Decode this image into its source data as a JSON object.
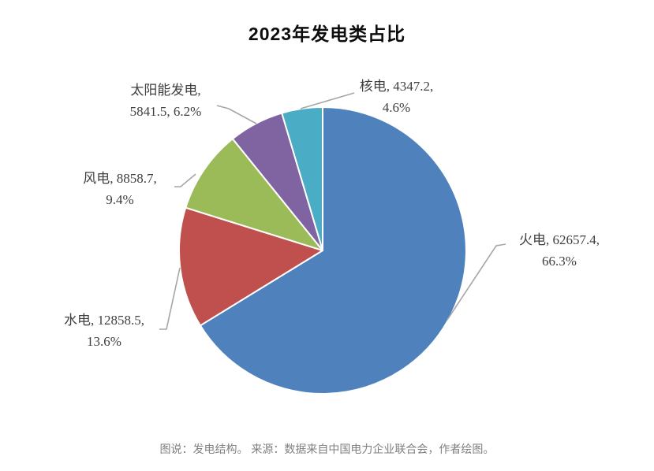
{
  "title": "2023年发电类占比",
  "caption": "图说：发电结构。 来源：数据来自中国电力企业联合会，作者绘图。",
  "chart_data": {
    "type": "pie",
    "title": "2023年发电类占比",
    "unit_note": "value, percent",
    "start_angle_deg": 0,
    "direction": "clockwise",
    "legend": "none",
    "label_style": "outside labels with gray leader lines: category, value, percent",
    "slices": [
      {
        "key": "thermal",
        "name": "火电",
        "value": 62657.4,
        "pct": 66.3,
        "color": "#4F81BD",
        "label_lines": [
          "火电, 62657.4,",
          "66.3%"
        ]
      },
      {
        "key": "hydro",
        "name": "水电",
        "value": 12858.5,
        "pct": 13.6,
        "color": "#C0504D",
        "label_lines": [
          "水电, 12858.5,",
          "13.6%"
        ]
      },
      {
        "key": "wind",
        "name": "风电",
        "value": 8858.7,
        "pct": 9.4,
        "color": "#9BBB59",
        "label_lines": [
          "风电, 8858.7,",
          "9.4%"
        ]
      },
      {
        "key": "solar",
        "name": "太阳能发电",
        "value": 5841.5,
        "pct": 6.2,
        "color": "#8064A2",
        "label_lines": [
          "太阳能发电,",
          "5841.5, 6.2%"
        ]
      },
      {
        "key": "nuclear",
        "name": "核电",
        "value": 4347.2,
        "pct": 4.6,
        "color": "#4BACC6",
        "label_lines": [
          "核电, 4347.2,",
          "4.6%"
        ]
      }
    ],
    "colors": {
      "leader_line": "#A6A6A6",
      "slice_border": "#FFFFFF",
      "label_text": "#404040",
      "caption_text": "#808080",
      "title_text": "#0d0d0d"
    }
  }
}
